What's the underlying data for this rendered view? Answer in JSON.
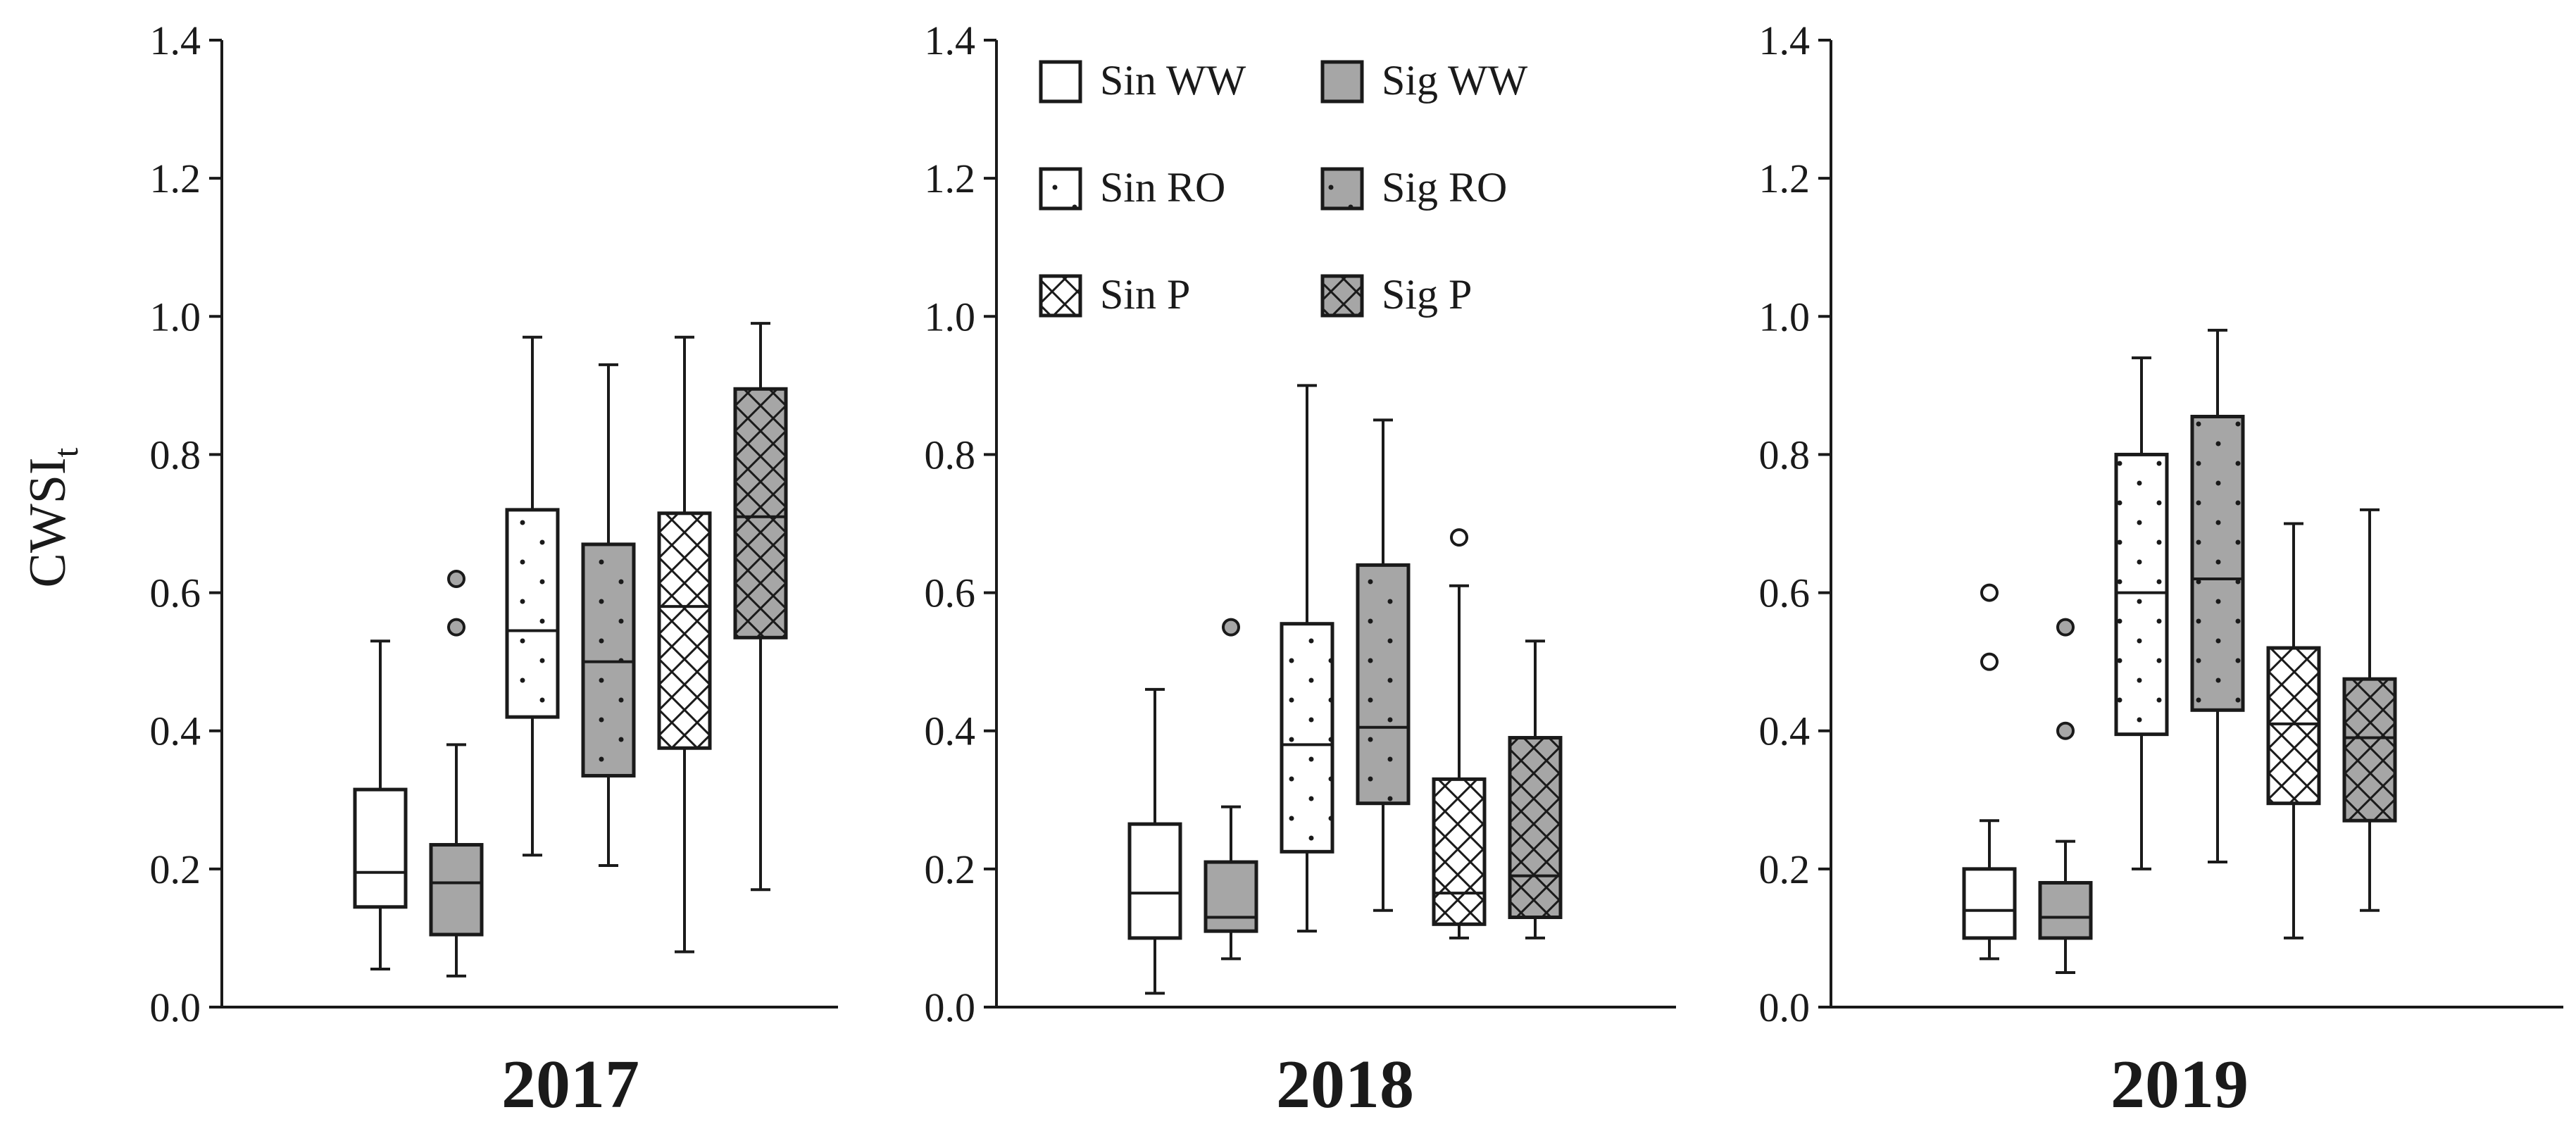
{
  "chart_data": {
    "type": "boxplot",
    "ylabel": "CWSI",
    "ylabel_subscript": "t",
    "ylim": [
      0.0,
      1.4
    ],
    "yticks": [
      "0.0",
      "0.2",
      "0.4",
      "0.6",
      "0.8",
      "1.0",
      "1.2",
      "1.4"
    ],
    "legend": {
      "placement": "top-left of middle panel",
      "entries": [
        {
          "key": "sin_ww",
          "label": "Sin WW"
        },
        {
          "key": "sig_ww",
          "label": "Sig WW"
        },
        {
          "key": "sin_ro",
          "label": "Sin RO"
        },
        {
          "key": "sig_ro",
          "label": "Sig RO"
        },
        {
          "key": "sin_p",
          "label": "Sin P"
        },
        {
          "key": "sig_p",
          "label": "Sig P"
        }
      ]
    },
    "series_style": {
      "sin_ww": {
        "fill": "#ffffff",
        "pattern": "none"
      },
      "sig_ww": {
        "fill": "#a6a6a6",
        "pattern": "none"
      },
      "sin_ro": {
        "fill": "#ffffff",
        "pattern": "dots"
      },
      "sig_ro": {
        "fill": "#a6a6a6",
        "pattern": "dots"
      },
      "sin_p": {
        "fill": "#ffffff",
        "pattern": "crosshatch"
      },
      "sig_p": {
        "fill": "#a6a6a6",
        "pattern": "crosshatch"
      }
    },
    "panels": [
      {
        "title": "2017",
        "boxes": [
          {
            "series": "sin_ww",
            "whisker_low": 0.055,
            "q1": 0.145,
            "median": 0.195,
            "q3": 0.315,
            "whisker_high": 0.53,
            "outliers": []
          },
          {
            "series": "sig_ww",
            "whisker_low": 0.045,
            "q1": 0.105,
            "median": 0.18,
            "q3": 0.235,
            "whisker_high": 0.38,
            "outliers": [
              0.55,
              0.62
            ]
          },
          {
            "series": "sin_ro",
            "whisker_low": 0.22,
            "q1": 0.42,
            "median": 0.545,
            "q3": 0.72,
            "whisker_high": 0.97,
            "outliers": []
          },
          {
            "series": "sig_ro",
            "whisker_low": 0.205,
            "q1": 0.335,
            "median": 0.5,
            "q3": 0.67,
            "whisker_high": 0.93,
            "outliers": []
          },
          {
            "series": "sin_p",
            "whisker_low": 0.08,
            "q1": 0.375,
            "median": 0.58,
            "q3": 0.715,
            "whisker_high": 0.97,
            "outliers": []
          },
          {
            "series": "sig_p",
            "whisker_low": 0.17,
            "q1": 0.535,
            "median": 0.71,
            "q3": 0.895,
            "whisker_high": 0.99,
            "outliers": []
          }
        ]
      },
      {
        "title": "2018",
        "boxes": [
          {
            "series": "sin_ww",
            "whisker_low": 0.02,
            "q1": 0.1,
            "median": 0.165,
            "q3": 0.265,
            "whisker_high": 0.46,
            "outliers": []
          },
          {
            "series": "sig_ww",
            "whisker_low": 0.07,
            "q1": 0.11,
            "median": 0.13,
            "q3": 0.21,
            "whisker_high": 0.29,
            "outliers": [
              0.55
            ]
          },
          {
            "series": "sin_ro",
            "whisker_low": 0.11,
            "q1": 0.225,
            "median": 0.38,
            "q3": 0.555,
            "whisker_high": 0.9,
            "outliers": []
          },
          {
            "series": "sig_ro",
            "whisker_low": 0.14,
            "q1": 0.295,
            "median": 0.405,
            "q3": 0.64,
            "whisker_high": 0.85,
            "outliers": []
          },
          {
            "series": "sin_p",
            "whisker_low": 0.1,
            "q1": 0.12,
            "median": 0.165,
            "q3": 0.33,
            "whisker_high": 0.61,
            "outliers": [
              0.68
            ]
          },
          {
            "series": "sig_p",
            "whisker_low": 0.1,
            "q1": 0.13,
            "median": 0.19,
            "q3": 0.39,
            "whisker_high": 0.53,
            "outliers": []
          }
        ]
      },
      {
        "title": "2019",
        "boxes": [
          {
            "series": "sin_ww",
            "whisker_low": 0.07,
            "q1": 0.1,
            "median": 0.14,
            "q3": 0.2,
            "whisker_high": 0.27,
            "outliers": [
              0.5,
              0.6
            ]
          },
          {
            "series": "sig_ww",
            "whisker_low": 0.05,
            "q1": 0.1,
            "median": 0.13,
            "q3": 0.18,
            "whisker_high": 0.24,
            "outliers": [
              0.4,
              0.55
            ]
          },
          {
            "series": "sin_ro",
            "whisker_low": 0.2,
            "q1": 0.395,
            "median": 0.6,
            "q3": 0.8,
            "whisker_high": 0.94,
            "outliers": []
          },
          {
            "series": "sig_ro",
            "whisker_low": 0.21,
            "q1": 0.43,
            "median": 0.62,
            "q3": 0.855,
            "whisker_high": 0.98,
            "outliers": []
          },
          {
            "series": "sin_p",
            "whisker_low": 0.1,
            "q1": 0.295,
            "median": 0.41,
            "q3": 0.52,
            "whisker_high": 0.7,
            "outliers": []
          },
          {
            "series": "sig_p",
            "whisker_low": 0.14,
            "q1": 0.27,
            "median": 0.39,
            "q3": 0.475,
            "whisker_high": 0.72,
            "outliers": []
          }
        ]
      }
    ]
  }
}
